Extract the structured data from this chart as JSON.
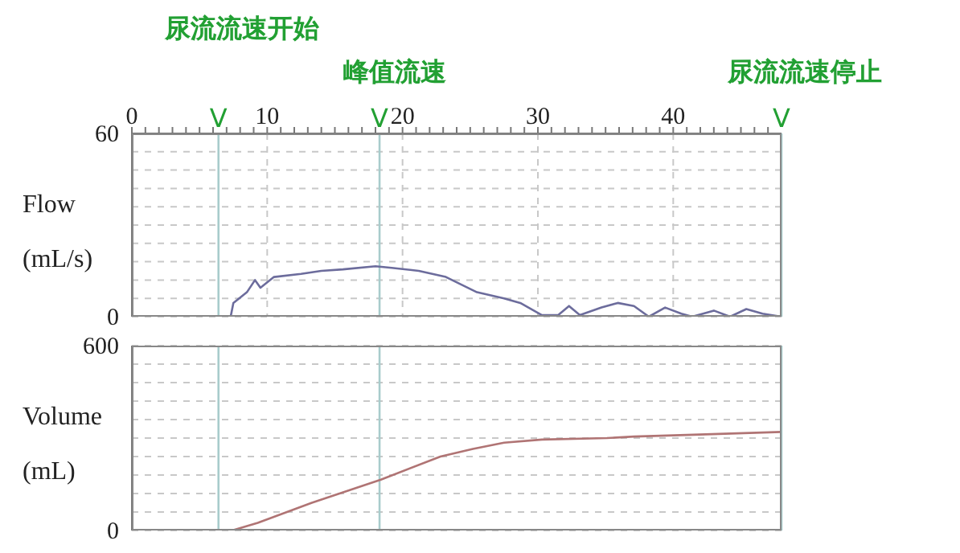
{
  "chart_data": [
    {
      "type": "line",
      "ylabel": "Flow\n(mL/s)",
      "xlim": [
        0,
        48
      ],
      "ylim": [
        0,
        60
      ],
      "xticks": [
        0,
        {
          "value": 1,
          "label": null
        },
        {
          "value": 2,
          "label": null
        },
        {
          "value": 3,
          "label": null
        },
        {
          "value": 4,
          "label": null
        },
        {
          "value": 5,
          "label": null
        },
        {
          "value": 6,
          "label": null
        },
        {
          "value": 7,
          "label": null
        },
        {
          "value": 8,
          "label": null
        },
        {
          "value": 9,
          "label": null
        },
        10,
        {
          "value": 11,
          "label": null
        },
        {
          "value": 12,
          "label": null
        },
        {
          "value": 13,
          "label": null
        },
        {
          "value": 14,
          "label": null
        },
        {
          "value": 15,
          "label": null
        },
        {
          "value": 16,
          "label": null
        },
        {
          "value": 17,
          "label": null
        },
        {
          "value": 18,
          "label": null
        },
        {
          "value": 19,
          "label": null
        },
        20,
        {
          "value": 21,
          "label": null
        },
        {
          "value": 22,
          "label": null
        },
        {
          "value": 23,
          "label": null
        },
        {
          "value": 24,
          "label": null
        },
        {
          "value": 25,
          "label": null
        },
        {
          "value": 26,
          "label": null
        },
        {
          "value": 27,
          "label": null
        },
        {
          "value": 28,
          "label": null
        },
        {
          "value": 29,
          "label": null
        },
        30,
        {
          "value": 31,
          "label": null
        },
        {
          "value": 32,
          "label": null
        },
        {
          "value": 33,
          "label": null
        },
        {
          "value": 34,
          "label": null
        },
        {
          "value": 35,
          "label": null
        },
        {
          "value": 36,
          "label": null
        },
        {
          "value": 37,
          "label": null
        },
        {
          "value": 38,
          "label": null
        },
        {
          "value": 39,
          "label": null
        },
        40,
        {
          "value": 41,
          "label": null
        },
        {
          "value": 42,
          "label": null
        },
        {
          "value": 43,
          "label": null
        },
        {
          "value": 44,
          "label": null
        },
        {
          "value": 45,
          "label": null
        },
        {
          "value": 46,
          "label": null
        },
        {
          "value": 47,
          "label": null
        }
      ],
      "yticks": [
        0,
        {
          "value": 6,
          "label": null
        },
        {
          "value": 12,
          "label": null
        },
        {
          "value": 18,
          "label": null
        },
        {
          "value": 24,
          "label": null
        },
        {
          "value": 30,
          "label": null
        },
        {
          "value": 36,
          "label": null
        },
        {
          "value": 42,
          "label": null
        },
        {
          "value": 48,
          "label": null
        },
        {
          "value": 54,
          "label": null
        },
        60
      ],
      "grid": true,
      "line_style": "solid",
      "x": [
        0,
        7.3,
        7.5,
        8.5,
        9.1,
        9.5,
        10.5,
        12.5,
        14,
        15.6,
        18,
        19.2,
        21.2,
        23.2,
        25.5,
        27.5,
        28.7,
        30.3,
        31.5,
        32.3,
        33.1,
        34.7,
        35.9,
        37.1,
        38.2,
        39.4,
        40.6,
        41.4,
        43,
        44.2,
        45.4,
        46.6,
        48
      ],
      "series": [
        {
          "color": "#6c6c9c",
          "values": [
            0,
            0,
            4.5,
            8,
            12,
            9.5,
            13,
            14,
            15,
            15.5,
            16.5,
            16,
            15,
            13,
            8,
            6,
            4.5,
            0.5,
            0.5,
            3.5,
            0.5,
            3,
            4.5,
            3.5,
            0,
            3,
            1,
            0,
            2,
            0,
            2.5,
            1,
            0
          ]
        }
      ],
      "ref_lines": [
        {
          "axis": "x",
          "value": 6.4,
          "label": "V",
          "color": "#a8cccc"
        },
        {
          "axis": "x",
          "value": 18.3,
          "label": "V",
          "color": "#a8cccc"
        },
        {
          "axis": "x",
          "value": 48,
          "label": "V",
          "color": "#a8cccc"
        }
      ],
      "annotations": [
        "尿流流速开始",
        "峰值流速",
        "尿流流速停止"
      ]
    },
    {
      "type": "line",
      "ylabel": "Volume\n(mL)",
      "xlim": [
        0,
        48
      ],
      "ylim": [
        0,
        600
      ],
      "xticks": [
        0,
        10,
        20,
        30,
        40
      ],
      "tick_labels": "y",
      "yticks": [
        0,
        {
          "value": 60,
          "label": null
        },
        {
          "value": 120,
          "label": null
        },
        {
          "value": 180,
          "label": null
        },
        {
          "value": 240,
          "label": null
        },
        {
          "value": 300,
          "label": null
        },
        {
          "value": 360,
          "label": null
        },
        {
          "value": 420,
          "label": null
        },
        {
          "value": 480,
          "label": null
        },
        {
          "value": 540,
          "label": null
        },
        600
      ],
      "grid": true,
      "line_style": "solid",
      "x": [
        0,
        7.4,
        9.3,
        13.3,
        18.4,
        22.8,
        25.2,
        27.5,
        30.3,
        35.1,
        37.1,
        41,
        48
      ],
      "series": [
        {
          "color": "#b07474",
          "values": [
            0,
            0,
            25,
            90,
            165,
            240,
            265,
            285,
            295,
            300,
            305,
            310,
            320
          ]
        }
      ],
      "ref_lines": [
        {
          "axis": "x",
          "value": 6.4,
          "color": "#a8cccc"
        },
        {
          "axis": "x",
          "value": 18.3,
          "color": "#a8cccc"
        },
        {
          "axis": "x",
          "value": 48,
          "color": "#a8cccc"
        }
      ]
    }
  ]
}
